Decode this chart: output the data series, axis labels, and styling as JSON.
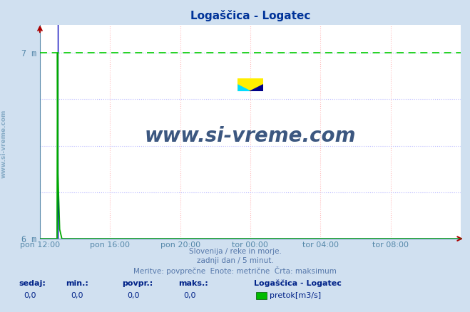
{
  "title": "Logaščica - Logatec",
  "title_color": "#003399",
  "bg_color": "#d0e0f0",
  "plot_bg_color": "#ffffff",
  "xlim": [
    0,
    288
  ],
  "ylim": [
    6.0,
    7.15
  ],
  "y_data_min": 6.0,
  "y_data_max": 7.0,
  "xtick_positions": [
    0,
    48,
    96,
    144,
    192,
    240
  ],
  "xtick_labels": [
    "pon 12:00",
    "pon 16:00",
    "pon 20:00",
    "tor 00:00",
    "tor 04:00",
    "tor 08:00"
  ],
  "max_line_y": 7.0,
  "max_line_color": "#00cc00",
  "vertical_line_color": "#0000bb",
  "green_line_color": "#00aa00",
  "grid_color_v": "#ffbbbb",
  "grid_color_h": "#bbbbff",
  "watermark_text": "www.si-vreme.com",
  "watermark_color": "#1a3a6a",
  "side_label_color": "#5588aa",
  "footer_line1": "Slovenija / reke in morje.",
  "footer_line2": "zadnji dan / 5 minut.",
  "footer_line3": "Meritve: povprečne  Enote: metrične  Črta: maksimum",
  "footer_color": "#5577aa",
  "stats_labels": [
    "sedaj:",
    "min.:",
    "povpr.:",
    "maks.:"
  ],
  "stats_values": [
    "0,0",
    "0,0",
    "0,0",
    "0,0"
  ],
  "stats_bold_color": "#002288",
  "legend_title": "Logaščica - Logatec",
  "legend_color": "#002288",
  "legend_series_label": "pretok[m3/s]",
  "legend_series_color": "#00bb00",
  "tick_color": "#5588aa",
  "arrow_color": "#aa0000",
  "spike_x": 12,
  "spike_top": 7.0,
  "spike_down": 6.05
}
